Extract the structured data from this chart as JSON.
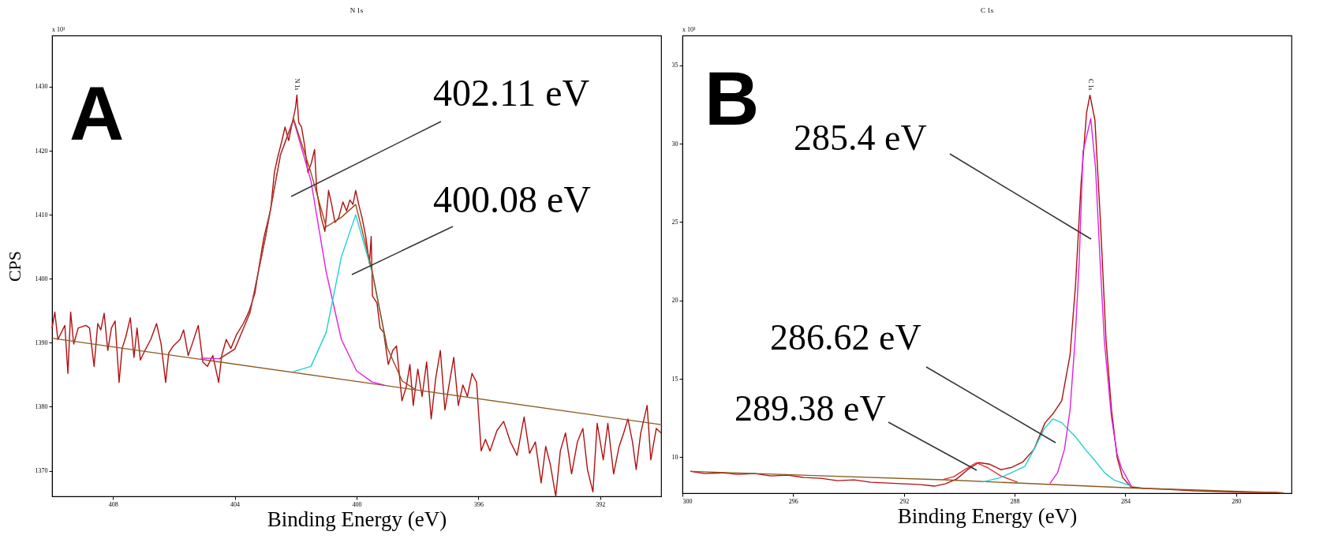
{
  "chart_data": [
    {
      "type": "line",
      "title": "N 1s",
      "xlabel": "Binding Energy (eV)",
      "ylabel": "CPS",
      "xlim": [
        410,
        390
      ],
      "ylim": [
        1366,
        1438
      ],
      "xticks": [
        408,
        404,
        400,
        396,
        392
      ],
      "yticks": [
        1370,
        1380,
        1390,
        1400,
        1410,
        1420,
        1430
      ],
      "series": [
        {
          "color": "#b01010",
          "x": [
            410.0,
            409.91,
            409.81,
            409.58,
            409.48,
            409.39,
            409.29,
            409.14,
            408.89,
            408.77,
            408.62,
            408.5,
            408.4,
            408.29,
            408.17,
            408.05,
            407.93,
            407.8,
            407.7,
            407.58,
            407.43,
            407.31,
            407.21,
            407.1,
            406.95,
            406.76,
            406.57,
            406.42,
            406.27,
            406.17,
            406.02,
            405.8,
            405.68,
            405.53,
            405.42,
            405.2,
            405.05,
            404.9,
            404.72,
            404.53,
            404.43,
            404.28,
            404.13,
            403.94,
            403.72,
            403.54,
            403.34,
            403.19,
            403.05,
            402.82,
            402.7,
            402.6,
            402.45,
            402.35,
            402.23,
            402.11,
            402.01,
            401.96,
            401.9,
            401.81,
            401.71,
            401.6,
            401.49,
            401.38,
            401.31,
            401.16,
            401.04,
            400.92,
            400.82,
            400.71,
            400.59,
            400.45,
            400.33,
            400.22,
            400.12,
            400.03,
            399.93,
            399.82,
            399.7,
            399.58,
            399.52,
            399.48,
            399.33,
            399.23,
            399.11,
            398.96,
            398.81,
            398.69,
            398.51,
            398.37,
            398.25,
            398.14,
            397.99,
            397.85,
            397.7,
            397.55,
            397.4,
            397.25,
            397.1,
            396.95,
            396.81,
            396.66,
            396.51,
            396.36,
            396.21,
            396.06,
            395.91,
            395.77,
            395.62,
            395.39,
            395.17,
            394.95,
            394.73,
            394.5,
            394.32,
            394.13,
            393.94,
            393.79,
            393.64,
            393.46,
            393.31,
            393.14,
            392.94,
            392.75,
            392.57,
            392.42,
            392.24,
            392.1,
            391.9,
            391.75,
            391.56,
            391.38,
            391.23,
            391.09,
            390.94,
            390.82,
            390.67,
            390.46,
            390.34,
            390.16,
            390.0
          ],
          "values": [
            1392.3,
            1394.8,
            1390.5,
            1392.7,
            1385.2,
            1394.8,
            1389.8,
            1392.3,
            1392.7,
            1392.3,
            1386.3,
            1393.0,
            1392.0,
            1394.6,
            1388.8,
            1392.3,
            1393.4,
            1383.8,
            1389.1,
            1390.9,
            1393.9,
            1387.7,
            1392.3,
            1387.3,
            1388.8,
            1390.5,
            1393.0,
            1389.8,
            1383.8,
            1388.4,
            1389.5,
            1390.5,
            1392.0,
            1388.0,
            1389.5,
            1392.7,
            1387.0,
            1386.3,
            1388.0,
            1383.8,
            1388.0,
            1390.5,
            1389.1,
            1391.3,
            1393.0,
            1394.8,
            1397.7,
            1402.3,
            1406.3,
            1410.9,
            1416.6,
            1418.8,
            1421.6,
            1423.7,
            1421.6,
            1424.4,
            1426.6,
            1428.7,
            1424.4,
            1423.7,
            1420.9,
            1416.6,
            1418.0,
            1420.2,
            1413.8,
            1409.5,
            1407.4,
            1413.8,
            1411.6,
            1408.8,
            1409.5,
            1412.0,
            1410.6,
            1412.3,
            1411.6,
            1413.8,
            1411.6,
            1409.5,
            1406.6,
            1402.4,
            1406.6,
            1397.3,
            1396.2,
            1392.3,
            1391.6,
            1386.6,
            1388.8,
            1389.5,
            1380.9,
            1383.1,
            1386.6,
            1380.2,
            1385.9,
            1381.6,
            1387.0,
            1378.1,
            1384.5,
            1388.8,
            1379.5,
            1383.8,
            1387.7,
            1380.2,
            1383.4,
            1381.6,
            1385.2,
            1383.8,
            1373.1,
            1374.9,
            1373.1,
            1376.3,
            1377.7,
            1374.5,
            1372.4,
            1378.4,
            1372.7,
            1374.5,
            1368.1,
            1373.8,
            1371.0,
            1366.0,
            1373.1,
            1375.9,
            1369.5,
            1374.5,
            1376.6,
            1370.2,
            1366.7,
            1377.4,
            1371.7,
            1377.4,
            1369.5,
            1373.8,
            1375.9,
            1378.1,
            1374.5,
            1370.2,
            1375.9,
            1380.2,
            1371.7,
            1376.6,
            1375.9
          ]
        },
        {
          "color": "#8b5a1e",
          "x": [
            410,
            390
          ],
          "values": [
            1390.7,
            1377.2
          ]
        },
        {
          "color": "#e020e0",
          "x": [
            405.1,
            404.5,
            404,
            403.5,
            403,
            402.5,
            402.07,
            401.5,
            401,
            400.5,
            400,
            399.5,
            399.1
          ],
          "values": [
            1387.6,
            1387.5,
            1389.0,
            1394.7,
            1406.3,
            1419.3,
            1424.8,
            1415.3,
            1401.1,
            1390.5,
            1385.6,
            1383.9,
            1383.4
          ]
        },
        {
          "color": "#20d0d0",
          "x": [
            402.07,
            401.5,
            401,
            400.5,
            400.03,
            399.5,
            399
          ],
          "values": [
            1385.5,
            1386.3,
            1391.6,
            1403.4,
            1410.0,
            1401.2,
            1389.3
          ]
        },
        {
          "color": "#9c4a1a",
          "x": [
            404.5,
            404,
            403.5,
            403,
            402.5,
            402.07,
            401.5,
            401,
            400.5,
            400.03,
            399.5,
            399,
            398.5,
            398.06
          ],
          "values": [
            1387.5,
            1389.0,
            1394.7,
            1406.3,
            1419.4,
            1425.0,
            1416.6,
            1408.1,
            1409.6,
            1411.6,
            1401.5,
            1389.3,
            1384.0,
            1382.7
          ]
        }
      ],
      "annotations": [
        "x 10¹",
        "A",
        {
          "text": "N 1s",
          "x": 401.96,
          "y": 1428.7
        },
        "402.11 eV",
        "400.08 eV"
      ]
    },
    {
      "type": "line",
      "title": "C 1s",
      "xlabel": "Binding Energy (eV)",
      "xlim": [
        300,
        278
      ],
      "ylim": [
        7.7,
        36.9
      ],
      "xticks": [
        300,
        296,
        292,
        288,
        284,
        280
      ],
      "yticks": [
        10,
        15,
        20,
        25,
        30,
        35
      ],
      "series": [
        {
          "color": "#b01010",
          "x": [
            299.7,
            299.2,
            298.6,
            298,
            297.4,
            296.8,
            296.2,
            295.6,
            295,
            294.4,
            293.8,
            293.2,
            292.6,
            292,
            291.4,
            290.9,
            290.5,
            290.1,
            289.7,
            289.3,
            288.9,
            288.5,
            288.1,
            287.7,
            287.3,
            286.9,
            286.6,
            286.3,
            286.0,
            285.8,
            285.6,
            285.4,
            285.28,
            285.1,
            284.9,
            284.7,
            284.5,
            284.3,
            284.1,
            283.8,
            283.3,
            282.5,
            281.5,
            280.5,
            279.5,
            278.6,
            278.3
          ],
          "values": [
            9.1,
            8.95,
            9.0,
            8.9,
            8.95,
            8.8,
            8.85,
            8.7,
            8.65,
            8.5,
            8.55,
            8.4,
            8.35,
            8.3,
            8.25,
            8.15,
            8.3,
            8.6,
            9.2,
            9.65,
            9.55,
            9.2,
            9.35,
            9.7,
            10.5,
            12.2,
            12.8,
            13.6,
            16.5,
            21,
            27.5,
            32,
            33.1,
            31.5,
            25,
            17.5,
            13,
            10,
            8.7,
            8.1,
            8.0,
            7.95,
            7.85,
            7.8,
            7.75,
            7.75,
            7.7
          ]
        },
        {
          "color": "#8b5a1e",
          "x": [
            299.7,
            290.4,
            283.7,
            278.3
          ],
          "values": [
            9.09,
            8.54,
            8.03,
            7.73
          ]
        },
        {
          "color": "#e03030",
          "x": [
            290.56,
            290.2,
            289.8,
            289.38,
            288.95,
            288.5,
            287.91
          ],
          "values": [
            8.59,
            8.75,
            9.2,
            9.65,
            9.3,
            8.8,
            8.41
          ]
        },
        {
          "color": "#20d0d0",
          "x": [
            289.16,
            288.5,
            288,
            287.63,
            287.3,
            286.93,
            286.62,
            286.3,
            285.81,
            285.45,
            285.11,
            284.75,
            284.41,
            283.79
          ],
          "values": [
            8.41,
            8.7,
            9.1,
            9.42,
            10.5,
            11.81,
            12.44,
            12.2,
            11.31,
            10.5,
            9.8,
            9.0,
            8.54,
            8.16
          ]
        },
        {
          "color": "#e020e0",
          "x": [
            286.72,
            286.45,
            286.2,
            286.0,
            285.82,
            285.67,
            285.53,
            285.25,
            285.08,
            284.91,
            284.76,
            284.5,
            284.3,
            284.14,
            283.79
          ],
          "values": [
            8.34,
            9.0,
            10.5,
            13,
            17.4,
            22.4,
            29.5,
            31.6,
            28.5,
            22.4,
            17.4,
            12.5,
            10.2,
            9.3,
            8.16
          ]
        }
      ],
      "annotations": [
        "x 10³",
        "B",
        {
          "text": "C 1s",
          "x": 285.28,
          "y": 33.1
        },
        "285.4 eV",
        "286.62 eV",
        "289.38 eV"
      ]
    }
  ]
}
